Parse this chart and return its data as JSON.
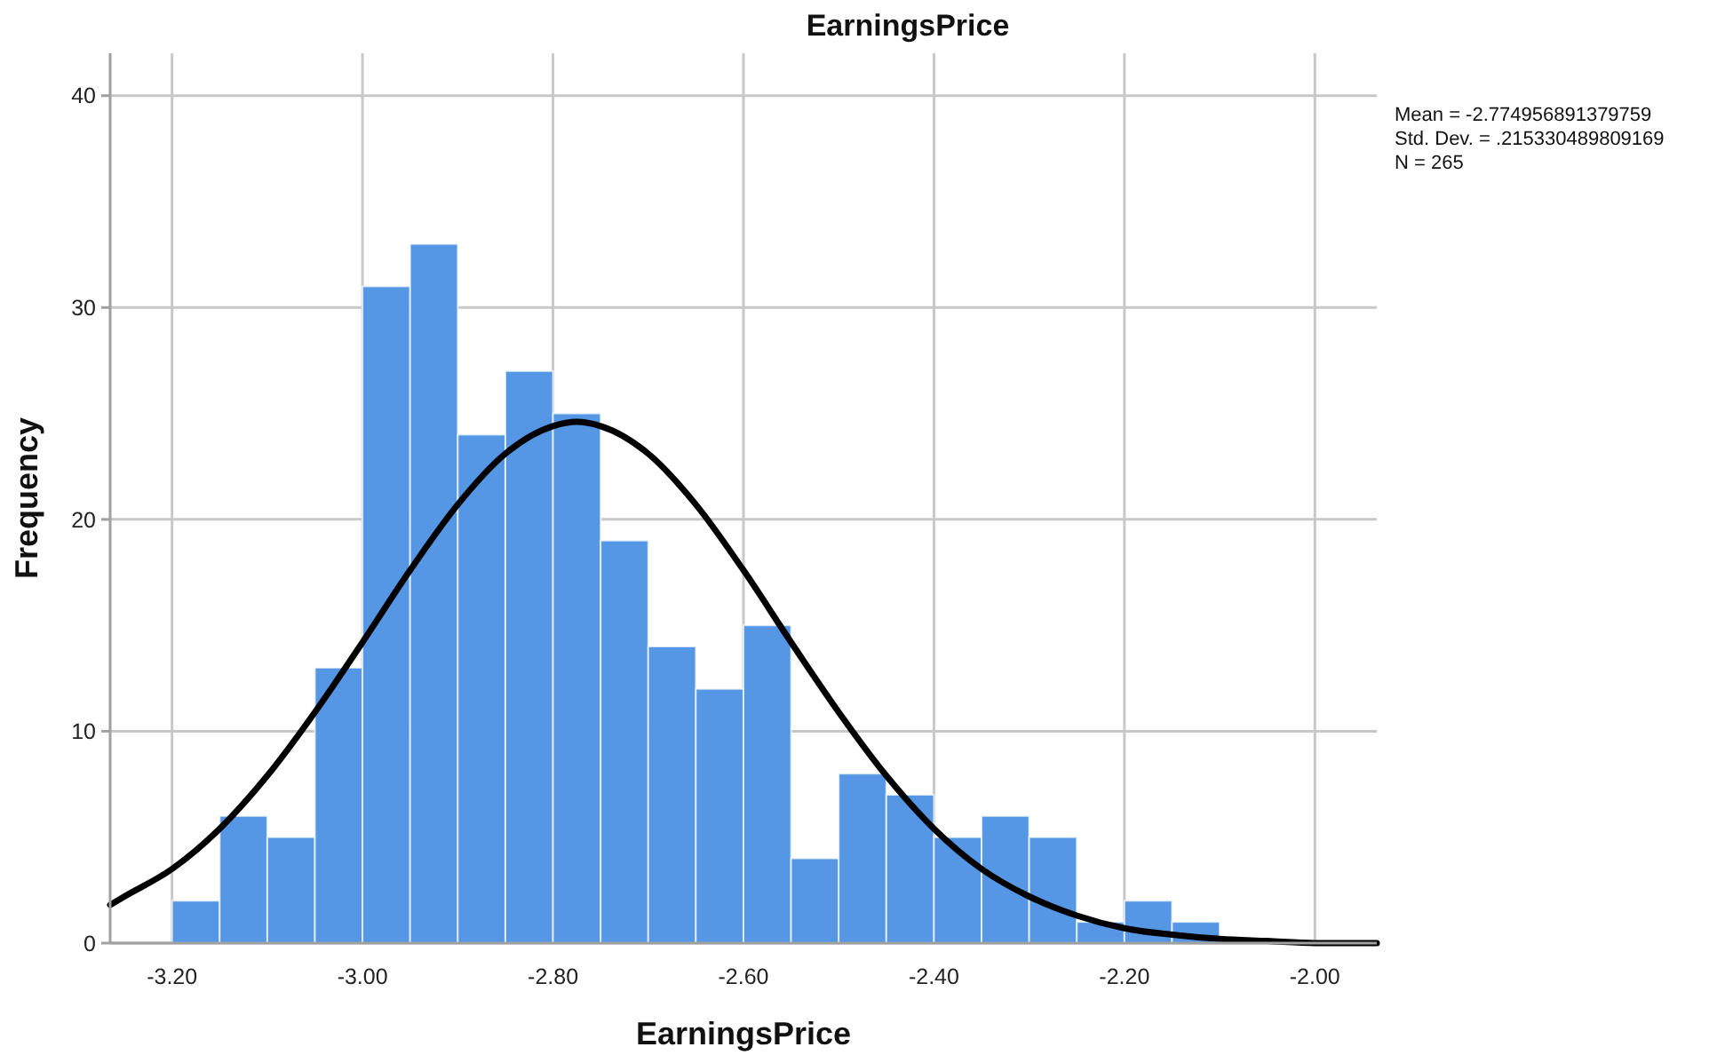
{
  "chart_data": {
    "type": "histogram",
    "title": "EarningsPrice",
    "xlabel": "EarningsPrice",
    "ylabel": "Frequency",
    "bins": [
      -3.2,
      -3.15,
      -3.1,
      -3.05,
      -3.0,
      -2.95,
      -2.9,
      -2.85,
      -2.8,
      -2.75,
      -2.7,
      -2.65,
      -2.6,
      -2.55,
      -2.5,
      -2.45,
      -2.4,
      -2.35,
      -2.3,
      -2.25,
      -2.2,
      -2.15,
      -2.1
    ],
    "series": [
      {
        "color": "#5597e5",
        "values": [
          2,
          6,
          5,
          13,
          31,
          33,
          24,
          27,
          25,
          19,
          14,
          12,
          15,
          4,
          8,
          7,
          5,
          6,
          5,
          1,
          2,
          1
        ]
      },
      {
        "type": "line",
        "color": "#000000",
        "x": [
          -3.265,
          -3.25,
          -3.2,
          -3.15,
          -3.1,
          -3.05,
          -3.0,
          -2.95,
          -2.9,
          -2.85,
          -2.8,
          -2.775,
          -2.75,
          -2.7,
          -2.65,
          -2.6,
          -2.55,
          -2.5,
          -2.45,
          -2.4,
          -2.35,
          -2.3,
          -2.25,
          -2.2,
          -2.15,
          -2.1,
          -2.05,
          -2.0,
          -1.95,
          -1.935
        ],
        "values": [
          1.8,
          2.2,
          3.5,
          5.4,
          7.9,
          10.9,
          14.2,
          17.6,
          20.7,
          23.1,
          24.4,
          24.6,
          24.4,
          23.1,
          20.7,
          17.6,
          14.2,
          10.9,
          7.9,
          5.4,
          3.5,
          2.2,
          1.3,
          0.7,
          0.4,
          0.2,
          0.1,
          0.0,
          0.0,
          0.0
        ]
      }
    ],
    "xlim": [
      -3.265,
      -1.935
    ],
    "ylim": [
      0,
      42
    ],
    "xticks": [
      {
        "value": -3.2,
        "label": "-3.20"
      },
      {
        "value": -3.0,
        "label": "-3.00"
      },
      {
        "value": -2.8,
        "label": "-2.80"
      },
      {
        "value": -2.6,
        "label": "-2.60"
      },
      {
        "value": -2.4,
        "label": "-2.40"
      },
      {
        "value": -2.2,
        "label": "-2.20"
      },
      {
        "value": -2.0,
        "label": "-2.00"
      }
    ],
    "yticks": [
      0,
      10,
      20,
      30,
      40
    ],
    "grid": true,
    "annotations": [
      "Mean = -2.774956891379759",
      "Std. Dev. = .215330489809169",
      "N = 265"
    ]
  }
}
